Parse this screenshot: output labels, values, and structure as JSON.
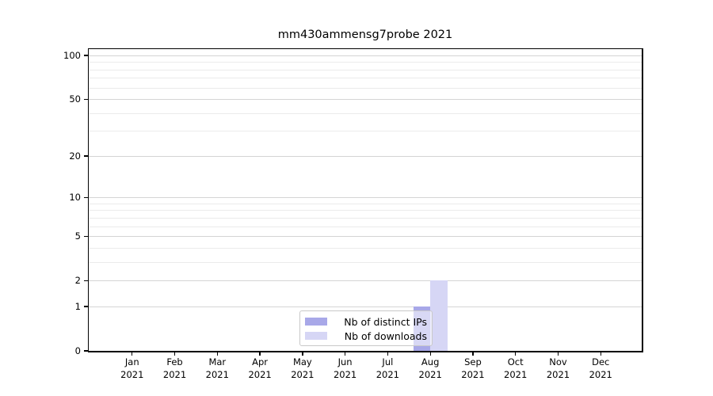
{
  "chart_data": {
    "type": "bar",
    "title": "mm430ammensg7probe 2021",
    "categories": [
      "Jan 2021",
      "Feb 2021",
      "Mar 2021",
      "Apr 2021",
      "May 2021",
      "Jun 2021",
      "Jul 2021",
      "Aug 2021",
      "Sep 2021",
      "Oct 2021",
      "Nov 2021",
      "Dec 2021"
    ],
    "series": [
      {
        "name": "Nb of distinct IPs",
        "color": "#a8a8e8",
        "values": [
          0,
          0,
          0,
          0,
          0,
          0,
          0,
          1,
          0,
          0,
          0,
          0
        ]
      },
      {
        "name": "Nb of downloads",
        "color": "#d6d6f5",
        "values": [
          0,
          0,
          0,
          0,
          0,
          0,
          0,
          2,
          0,
          0,
          0,
          0
        ]
      }
    ],
    "xlabel": "",
    "ylabel": "",
    "yscale": "log1p",
    "ylim": [
      0,
      110.5
    ],
    "yticks": [
      0,
      1,
      2,
      5,
      10,
      20,
      50,
      100
    ],
    "yticks_minor": [
      3,
      4,
      6,
      7,
      8,
      9,
      30,
      40,
      60,
      70,
      80,
      90
    ],
    "grid": "horizontal",
    "legend_position": "lower center inside plot"
  },
  "colors": {
    "grid_major": "#d4d4d4",
    "grid_minor": "#ebebeb",
    "axis": "#000000",
    "legend_border": "#c9c9c9"
  }
}
